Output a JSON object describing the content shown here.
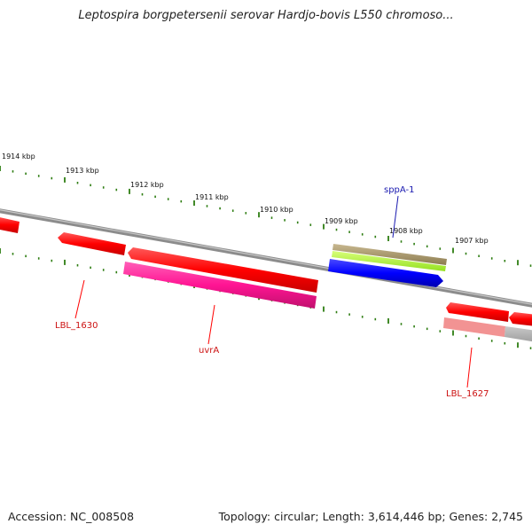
{
  "title": "Leptospira borgpetersenii serovar Hardjo-bovis L550 chromoso...",
  "footer": {
    "accession": "Accession: NC_008508",
    "stats": "Topology: circular; Length: 3,614,446 bp; Genes: 2,745"
  },
  "ticks": [
    "1914 kbp",
    "1913 kbp",
    "1912 kbp",
    "1911 kbp",
    "1910 kbp",
    "1909 kbp",
    "1908 kbp",
    "1907 kbp"
  ],
  "genes": [
    {
      "label": "",
      "color": "#ff0000"
    },
    {
      "label": "LBL_1630",
      "color": "#ff0000"
    },
    {
      "label": "uvrA",
      "color": "#ff0000"
    },
    {
      "label": "",
      "color": "#ff1493"
    },
    {
      "label": "sppA-1",
      "color": "#1a1ab0"
    },
    {
      "label": "",
      "color": "#0000ff"
    },
    {
      "label": "",
      "color": "#adff2f"
    },
    {
      "label": "",
      "color": "#a09060"
    },
    {
      "label": "LBL_1627",
      "color": "#ff0000"
    },
    {
      "label": "",
      "color": "#ff0000"
    }
  ],
  "colors": {
    "backbone": "#8c8c8c",
    "tick": "#2e7d12",
    "label_red": "#cc1111",
    "label_blue": "#1a1ab0"
  }
}
